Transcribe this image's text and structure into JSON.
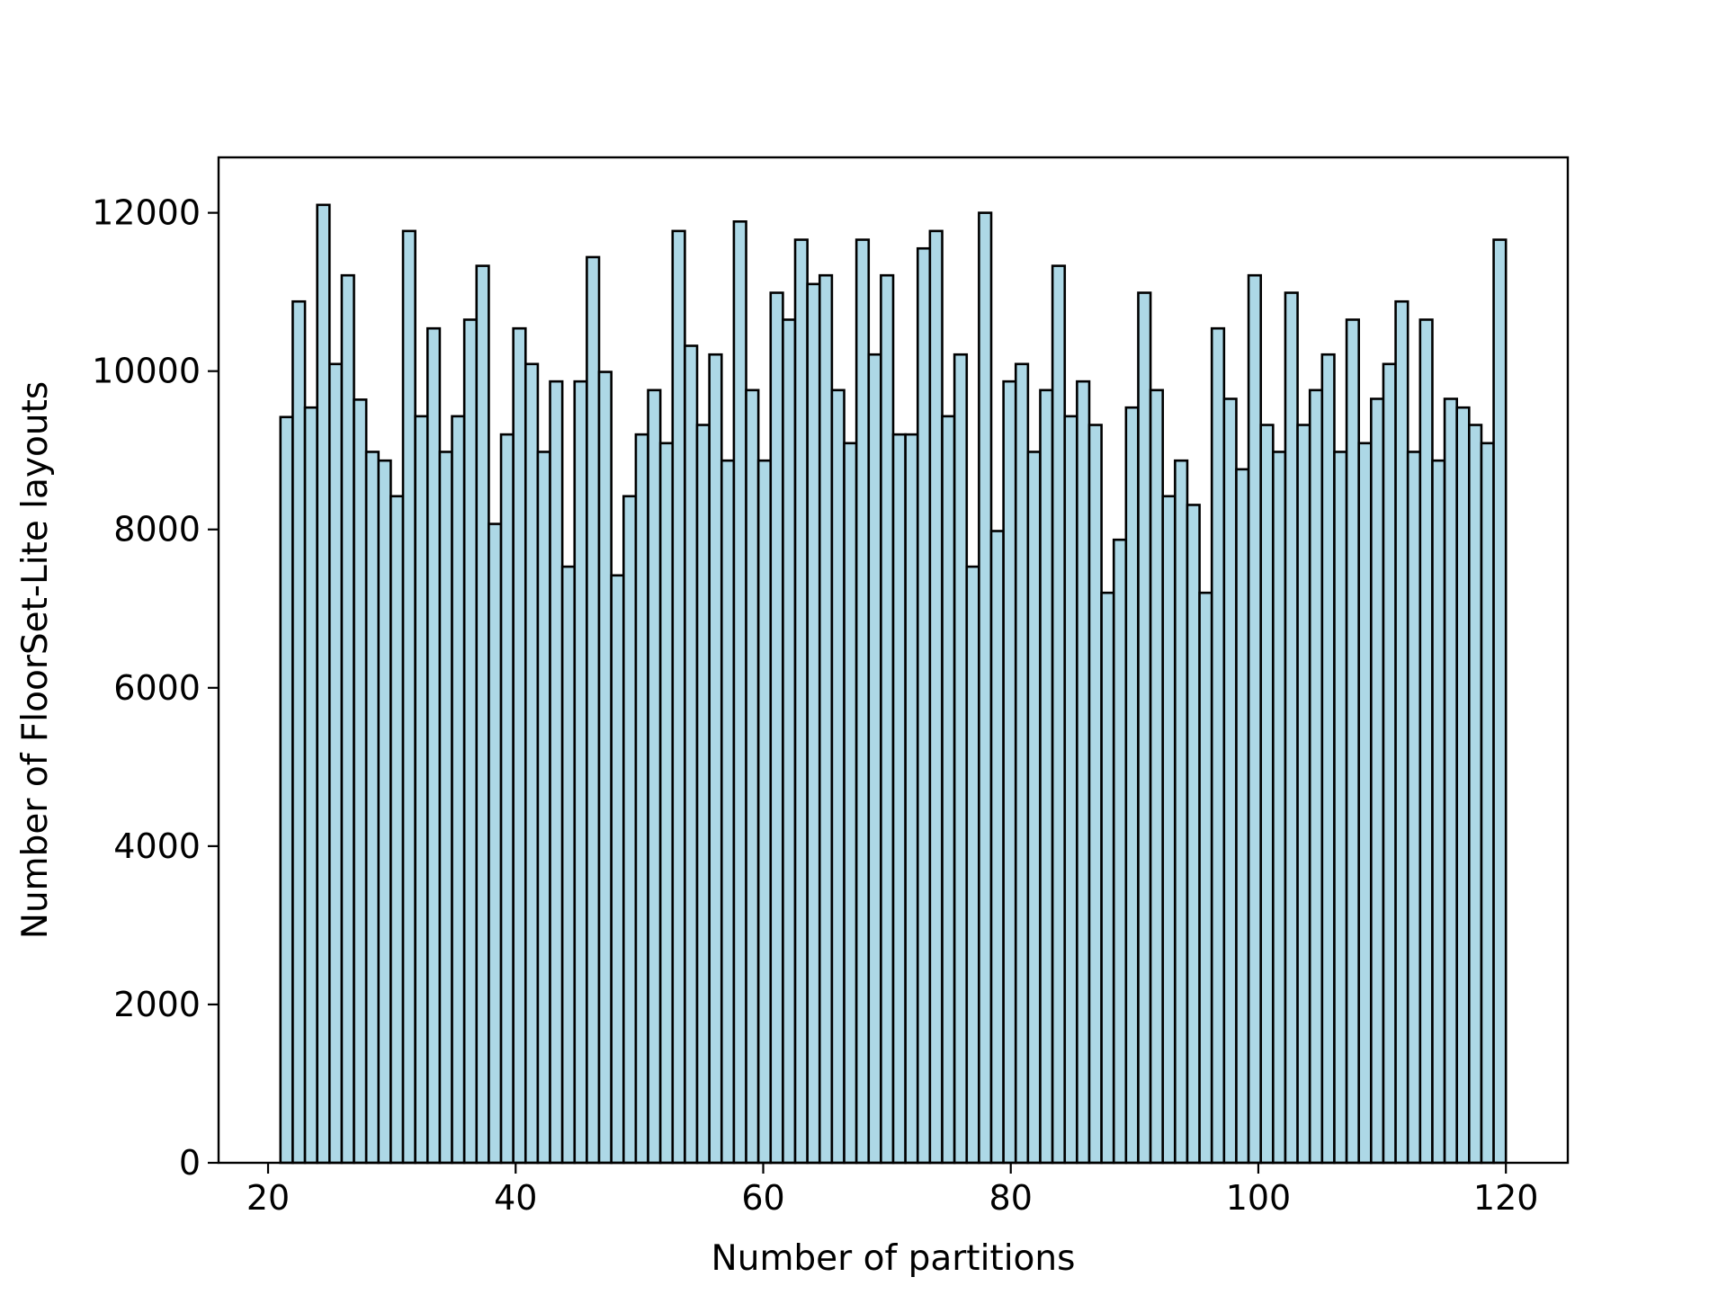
{
  "chart_data": {
    "type": "bar",
    "xlabel": "Number of partitions",
    "ylabel": "Number of FloorSet-Lite layouts",
    "xlim": [
      16,
      125
    ],
    "ylim": [
      0,
      12700
    ],
    "xticks": [
      20,
      40,
      60,
      80,
      100,
      120
    ],
    "yticks": [
      0,
      2000,
      4000,
      6000,
      8000,
      10000,
      12000
    ],
    "bin_start": 21,
    "bin_width": 0.99,
    "grid": false,
    "colors": {
      "bar_fill": "#add8e6",
      "bar_edge": "#000000",
      "axes": "#000000"
    },
    "values": [
      9420,
      10880,
      9540,
      12100,
      10090,
      11210,
      9640,
      8980,
      8870,
      8420,
      11770,
      9430,
      10540,
      8980,
      9430,
      10650,
      11330,
      8070,
      9200,
      10540,
      10090,
      8980,
      9870,
      7530,
      9870,
      11440,
      9990,
      7420,
      8420,
      9200,
      9760,
      9090,
      11770,
      10320,
      9320,
      10210,
      8870,
      11890,
      9760,
      8870,
      10990,
      10650,
      11660,
      11100,
      11210,
      9760,
      9090,
      11660,
      10210,
      11210,
      9200,
      9200,
      11550,
      11770,
      9430,
      10210,
      7530,
      12000,
      7980,
      9870,
      10090,
      8980,
      9760,
      11330,
      9430,
      9870,
      9320,
      7200,
      7870,
      9540,
      10990,
      9760,
      8420,
      8870,
      8310,
      7200,
      10540,
      9650,
      8760,
      11210,
      9320,
      8980,
      10990,
      9320,
      9760,
      10210,
      8980,
      10650,
      9090,
      9650,
      10090,
      10880,
      8980,
      10650,
      8870,
      9650,
      9540,
      9320,
      9090,
      11660
    ]
  }
}
